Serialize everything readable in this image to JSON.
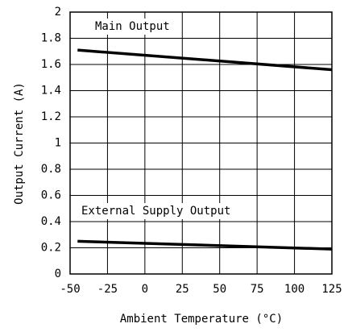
{
  "chart_data": {
    "type": "line",
    "xlabel": "Ambient Temperature (°C)",
    "ylabel": "Output Current (A)",
    "x": [
      -45,
      125
    ],
    "series": [
      {
        "name": "Main Output",
        "color": "#000000",
        "values": [
          1.71,
          1.56
        ]
      },
      {
        "name": "External Supply Output",
        "color": "#000000",
        "values": [
          0.25,
          0.19
        ]
      }
    ],
    "xlim": [
      -50,
      125
    ],
    "xticks": [
      -50,
      -25,
      0,
      25,
      50,
      75,
      100,
      125
    ],
    "ylim": [
      0,
      2
    ],
    "yticks": [
      0,
      0.2,
      0.4,
      0.6,
      0.8,
      1,
      1.2,
      1.4,
      1.6,
      1.8,
      2
    ],
    "grid": true
  }
}
